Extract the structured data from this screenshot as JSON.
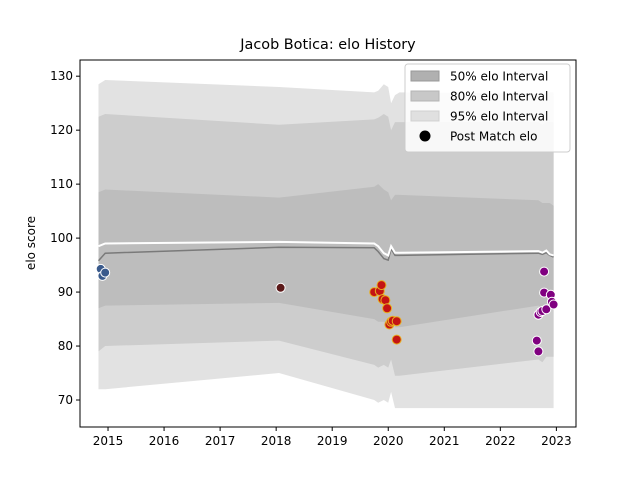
{
  "chart_data": {
    "type": "line",
    "title": "Jacob Botica: elo History",
    "xlabel": "",
    "ylabel": "elo score",
    "xlim": [
      2014.5,
      2023.35
    ],
    "ylim": [
      65,
      133
    ],
    "x_ticks": [
      2015,
      2016,
      2017,
      2018,
      2019,
      2020,
      2021,
      2022,
      2023
    ],
    "y_ticks": [
      70,
      80,
      90,
      100,
      110,
      120,
      130
    ],
    "grid": false,
    "legend_placement": "upper right",
    "legend": [
      {
        "label": "50% elo Interval",
        "kind": "patch",
        "color": "#b0b0b0"
      },
      {
        "label": "80% elo Interval",
        "kind": "patch",
        "color": "#c8c8c8"
      },
      {
        "label": "95% elo Interval",
        "kind": "patch",
        "color": "#e0e0e0"
      },
      {
        "label": "Post Match elo",
        "kind": "marker",
        "color": "#000000"
      }
    ],
    "bands": {
      "x": [
        2014.83,
        2014.95,
        2018.05,
        2019.75,
        2019.82,
        2019.92,
        2020.0,
        2020.05,
        2020.12,
        2020.2,
        2022.68,
        2022.75,
        2022.82,
        2022.88,
        2022.95
      ],
      "p95_upper": [
        128.5,
        129.3,
        128.0,
        127.0,
        127.3,
        128.5,
        128.0,
        125.0,
        126.5,
        127.0,
        126.8,
        126.5,
        127.0,
        127.0,
        127.0
      ],
      "p95_lower": [
        72.0,
        72.0,
        75.0,
        70.0,
        69.5,
        70.0,
        69.5,
        71.5,
        68.5,
        68.5,
        68.5,
        68.5,
        68.5,
        68.5,
        68.5
      ],
      "p80_upper": [
        122.5,
        123.0,
        121.0,
        122.0,
        122.3,
        123.0,
        122.5,
        120.0,
        121.5,
        121.5,
        121.5,
        121.0,
        121.5,
        121.5,
        121.5
      ],
      "p80_lower": [
        79.0,
        80.0,
        81.0,
        76.5,
        76.0,
        76.5,
        76.0,
        77.5,
        74.5,
        74.5,
        77.5,
        77.0,
        78.0,
        78.0,
        78.0
      ],
      "p50_upper": [
        108.5,
        109.0,
        107.5,
        109.5,
        110.0,
        109.0,
        108.5,
        107.0,
        108.0,
        108.0,
        107.0,
        106.5,
        106.5,
        106.5,
        106.0
      ],
      "p50_lower": [
        87.0,
        87.5,
        88.0,
        85.0,
        84.5,
        84.5,
        84.0,
        85.5,
        83.5,
        83.5,
        87.5,
        87.0,
        87.5,
        87.5,
        87.5
      ],
      "median_dark": [
        95.8,
        97.2,
        98.3,
        98.2,
        97.5,
        96.2,
        95.9,
        98.0,
        96.8,
        96.8,
        97.2,
        97.0,
        97.3,
        96.8,
        96.5
      ],
      "median_white": [
        98.5,
        99.0,
        99.3,
        99.0,
        98.5,
        97.2,
        96.8,
        98.5,
        97.3,
        97.3,
        97.6,
        97.3,
        97.7,
        97.0,
        96.8
      ]
    },
    "series": [
      {
        "color": "#3a5a8c",
        "x": [
          2014.87,
          2014.9,
          2014.95
        ],
        "y": [
          94.3,
          93.0,
          93.6
        ]
      },
      {
        "color": "#5c1a1a",
        "x": [
          2018.08
        ],
        "y": [
          90.8
        ]
      },
      {
        "color": "#c41414",
        "edge": "#e8b020",
        "x": [
          2019.75,
          2019.85,
          2019.88,
          2019.9,
          2019.95,
          2019.98,
          2020.02,
          2020.05,
          2020.08,
          2020.15,
          2020.15
        ],
        "y": [
          90.0,
          90.2,
          91.3,
          88.7,
          88.5,
          87.0,
          84.0,
          84.5,
          84.7,
          84.6,
          81.2
        ]
      },
      {
        "color": "#800080",
        "x": [
          2022.65,
          2022.68,
          2022.68,
          2022.72,
          2022.75,
          2022.78,
          2022.78,
          2022.82,
          2022.9,
          2022.92,
          2022.95
        ],
        "y": [
          81.0,
          79.0,
          85.8,
          86.3,
          86.5,
          93.8,
          89.9,
          86.8,
          89.5,
          88.2,
          87.7
        ]
      }
    ]
  }
}
